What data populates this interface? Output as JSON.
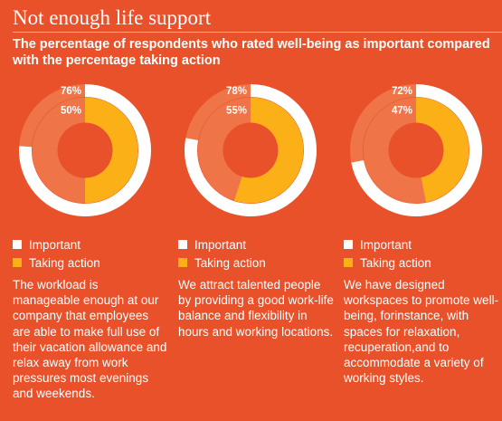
{
  "page": {
    "title": "Not enough life support",
    "subtitle": "The percentage of respondents who rated well-being as important compared with the percentage taking action"
  },
  "colors": {
    "background": "#e8512a",
    "track": "#ef7448",
    "important": "#ffffff",
    "taking_action": "#fbb018"
  },
  "legend": {
    "important_label": "Important",
    "taking_action_label": "Taking action"
  },
  "chart_data": [
    {
      "type": "pie",
      "variant": "nested-donut",
      "series": [
        {
          "name": "Important",
          "values": [
            76
          ]
        },
        {
          "name": "Taking action",
          "values": [
            50
          ]
        }
      ],
      "labels": {
        "important": "76%",
        "taking_action": "50%"
      },
      "description": "The workload is manageable enough at our company that employees are able to make full use of their vacation allowance and relax away from work pressures most evenings and weekends."
    },
    {
      "type": "pie",
      "variant": "nested-donut",
      "series": [
        {
          "name": "Important",
          "values": [
            78
          ]
        },
        {
          "name": "Taking action",
          "values": [
            55
          ]
        }
      ],
      "labels": {
        "important": "78%",
        "taking_action": "55%"
      },
      "description": "We attract talented people by providing a good work-life balance and flexibility in hours and working locations."
    },
    {
      "type": "pie",
      "variant": "nested-donut",
      "series": [
        {
          "name": "Important",
          "values": [
            72
          ]
        },
        {
          "name": "Taking action",
          "values": [
            47
          ]
        }
      ],
      "labels": {
        "important": "72%",
        "taking_action": "47%"
      },
      "description": "We have designed workspaces to promote well-being, forinstance, with spaces for relaxation, recuperation,and to accommodate a variety of working styles."
    }
  ]
}
